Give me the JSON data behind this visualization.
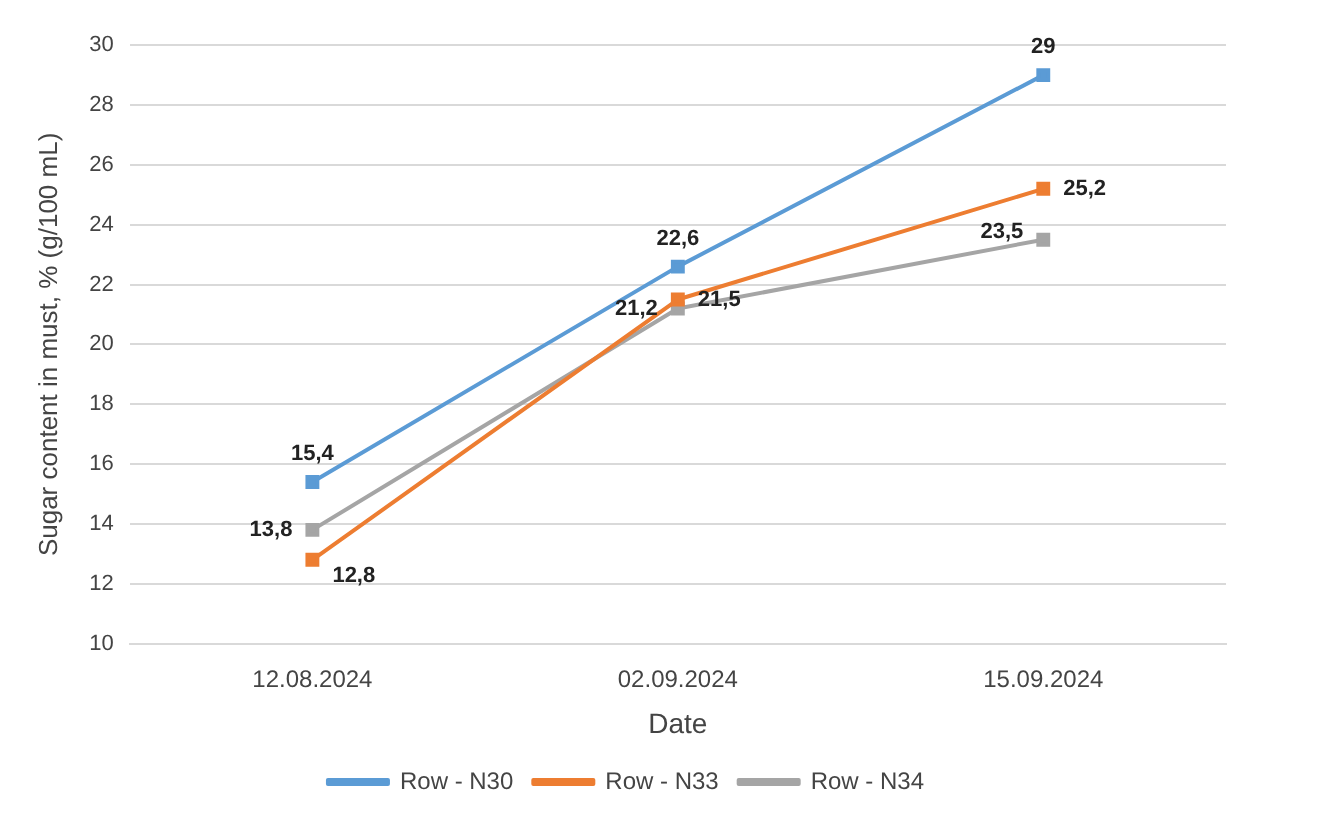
{
  "chart_data": {
    "type": "line",
    "xlabel": "Date",
    "ylabel": "Sugar content in must, % (g/100 mL)",
    "categories": [
      "12.08.2024",
      "02.09.2024",
      "15.09.2024"
    ],
    "series": [
      {
        "name": "Row - N30",
        "color": "#5b9bd5",
        "values": [
          15.4,
          22.6,
          29
        ],
        "value_labels": [
          "15,4",
          "22,6",
          "29"
        ]
      },
      {
        "name": "Row - N33",
        "color": "#ed7d31",
        "values": [
          12.8,
          21.5,
          25.2
        ],
        "value_labels": [
          "12,8",
          "21,5",
          "25,2"
        ]
      },
      {
        "name": "Row - N34",
        "color": "#a5a5a5",
        "values": [
          13.8,
          21.2,
          23.5
        ],
        "value_labels": [
          "13,8",
          "21,2",
          "23,5"
        ]
      }
    ],
    "ylim": [
      10,
      30
    ],
    "yticks": [
      10,
      12,
      14,
      16,
      18,
      20,
      22,
      24,
      26,
      28,
      30
    ],
    "grid": "y",
    "legend": "bottom",
    "marker": "square",
    "line_style": "solid"
  }
}
